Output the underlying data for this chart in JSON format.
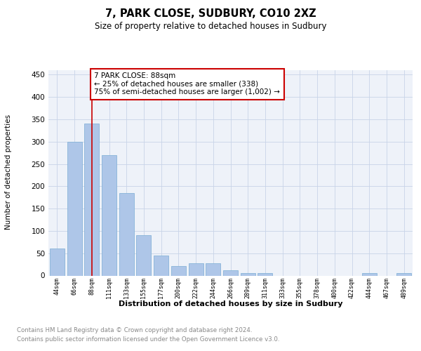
{
  "title": "7, PARK CLOSE, SUDBURY, CO10 2XZ",
  "subtitle": "Size of property relative to detached houses in Sudbury",
  "xlabel": "Distribution of detached houses by size in Sudbury",
  "ylabel": "Number of detached properties",
  "categories": [
    "44sqm",
    "66sqm",
    "88sqm",
    "111sqm",
    "133sqm",
    "155sqm",
    "177sqm",
    "200sqm",
    "222sqm",
    "244sqm",
    "266sqm",
    "289sqm",
    "311sqm",
    "333sqm",
    "355sqm",
    "378sqm",
    "400sqm",
    "422sqm",
    "444sqm",
    "467sqm",
    "489sqm"
  ],
  "values": [
    60,
    300,
    340,
    270,
    185,
    90,
    45,
    22,
    28,
    28,
    12,
    5,
    5,
    0,
    0,
    0,
    0,
    0,
    5,
    0,
    5
  ],
  "bar_color": "#aec6e8",
  "bar_edge_color": "#7aadd4",
  "vline_x_index": 2,
  "vline_color": "#cc0000",
  "annotation_text": "7 PARK CLOSE: 88sqm\n← 25% of detached houses are smaller (338)\n75% of semi-detached houses are larger (1,002) →",
  "annotation_box_color": "#cc0000",
  "ylim": [
    0,
    460
  ],
  "yticks": [
    0,
    50,
    100,
    150,
    200,
    250,
    300,
    350,
    400,
    450
  ],
  "background_color": "#ffffff",
  "plot_bg_color": "#eef2f9",
  "grid_color": "#c8d4e8",
  "footer1": "Contains HM Land Registry data © Crown copyright and database right 2024.",
  "footer2": "Contains public sector information licensed under the Open Government Licence v3.0."
}
